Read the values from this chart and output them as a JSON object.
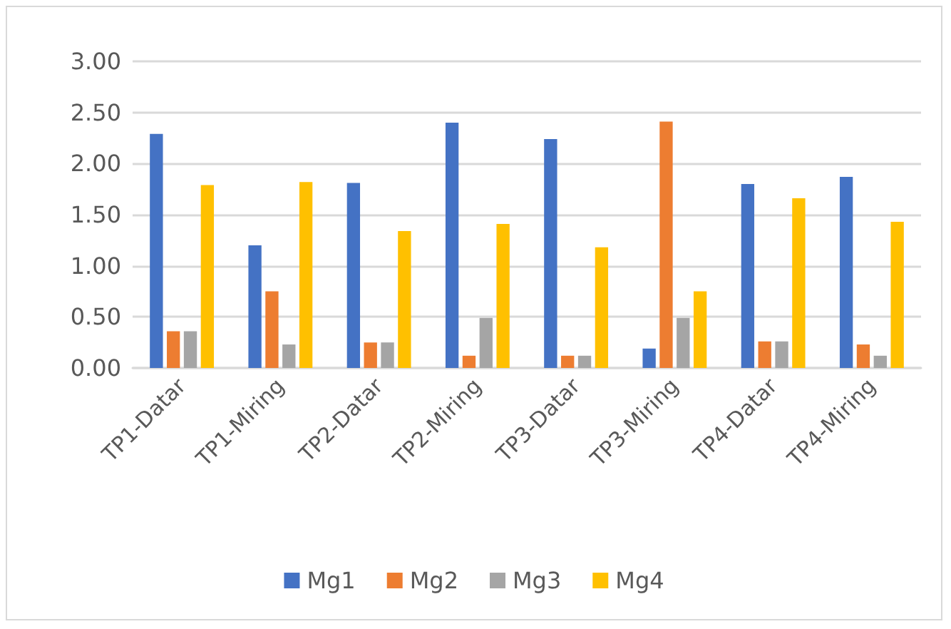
{
  "chart_data": {
    "type": "bar",
    "categories": [
      "TP1-Datar",
      "TP1-Miring",
      "TP2-Datar",
      "TP2-Miring",
      "TP3-Datar",
      "TP3-Miring",
      "TP4-Datar",
      "TP4-Miring"
    ],
    "series": [
      {
        "name": "Mg1",
        "color": "#4472c4",
        "values": [
          2.29,
          1.2,
          1.81,
          2.4,
          2.24,
          0.19,
          1.8,
          1.87
        ]
      },
      {
        "name": "Mg2",
        "color": "#ed7d31",
        "values": [
          0.36,
          0.75,
          0.25,
          0.12,
          0.12,
          2.41,
          0.26,
          0.23
        ]
      },
      {
        "name": "Mg3",
        "color": "#a5a5a5",
        "values": [
          0.36,
          0.23,
          0.25,
          0.49,
          0.12,
          0.49,
          0.26,
          0.12
        ]
      },
      {
        "name": "Mg4",
        "color": "#ffc000",
        "values": [
          1.79,
          1.82,
          1.34,
          1.41,
          1.18,
          0.75,
          1.66,
          1.43
        ]
      }
    ],
    "ylim": [
      0,
      3
    ],
    "yticks": [
      {
        "value": 0,
        "label": "0.00"
      },
      {
        "value": 0.5,
        "label": "0.50"
      },
      {
        "value": 1,
        "label": "1.00"
      },
      {
        "value": 1.5,
        "label": "1.50"
      },
      {
        "value": 2,
        "label": "2.00"
      },
      {
        "value": 2.5,
        "label": "2.50"
      },
      {
        "value": 3,
        "label": "3.00"
      }
    ],
    "grid": "y",
    "legend": "bottom"
  }
}
